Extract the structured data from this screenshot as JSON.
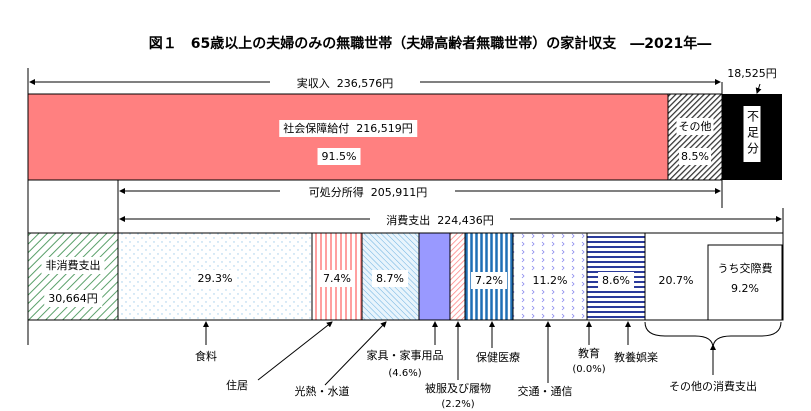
{
  "title": "図１　65歳以上の夫婦のみの無職世帯（夫婦高齢者無職世帯）の家計収支　―2021年―",
  "chart_data": {
    "type": "bar",
    "title": "図１　65歳以上の夫婦のみの無職世帯（夫婦高齢者無職世帯）の家計収支　―2021年―",
    "income": {
      "label": "実収入",
      "value": 236576,
      "value_label": "236,576円",
      "segments": [
        {
          "name": "社会保障給付",
          "value": 216519,
          "value_label": "216,519円",
          "share": 91.5,
          "share_label": "91.5%",
          "color": "#ff8080"
        },
        {
          "name": "その他",
          "share": 8.5,
          "share_label": "8.5%",
          "color": "#333333"
        }
      ],
      "deficit": {
        "label": "不足分",
        "chars": [
          "不",
          "足",
          "分"
        ],
        "value": 18525,
        "value_label": "18,525円",
        "color": "#000000"
      }
    },
    "disposable": {
      "label": "可処分所得",
      "value": 205911,
      "value_label": "205,911円"
    },
    "consumption": {
      "label": "消費支出",
      "value": 224436,
      "value_label": "224,436円"
    },
    "non_consumption": {
      "label": "非消費支出",
      "value": 30664,
      "value_label": "30,664円",
      "color": "#5aa06a"
    },
    "expense_segments": [
      {
        "name": "食料",
        "share": 29.3,
        "share_label": "29.3%",
        "color": "#9ecbea"
      },
      {
        "name": "住居",
        "share": 7.4,
        "share_label": "7.4%",
        "color": "#ff8080"
      },
      {
        "name": "光熱・水道",
        "share": 8.7,
        "share_label": "8.7%",
        "color": "#6ab0e0"
      },
      {
        "name": "家具・家事用品",
        "share": 4.6,
        "share_label": "(4.6%)",
        "color": "#9999ff"
      },
      {
        "name": "被服及び履物",
        "share": 2.2,
        "share_label": "(2.2%)",
        "color": "#ff8080"
      },
      {
        "name": "保健医療",
        "share": 7.2,
        "share_label": "7.2%",
        "color": "#1f6fb5"
      },
      {
        "name": "交通・通信",
        "share": 11.2,
        "share_label": "11.2%",
        "color": "#8888ee"
      },
      {
        "name": "教育",
        "share": 0.0,
        "share_label": "(0.0%)",
        "color": "#ffffff"
      },
      {
        "name": "教養娯楽",
        "share": 8.6,
        "share_label": "8.6%",
        "color": "#2a3a9a"
      },
      {
        "name": "その他の消費支出",
        "share": 20.7,
        "share_label": "20.7%",
        "color": "#ffffff"
      }
    ],
    "sub_item": {
      "name": "うち交際費",
      "share": 9.2,
      "share_label": "9.2%"
    }
  }
}
